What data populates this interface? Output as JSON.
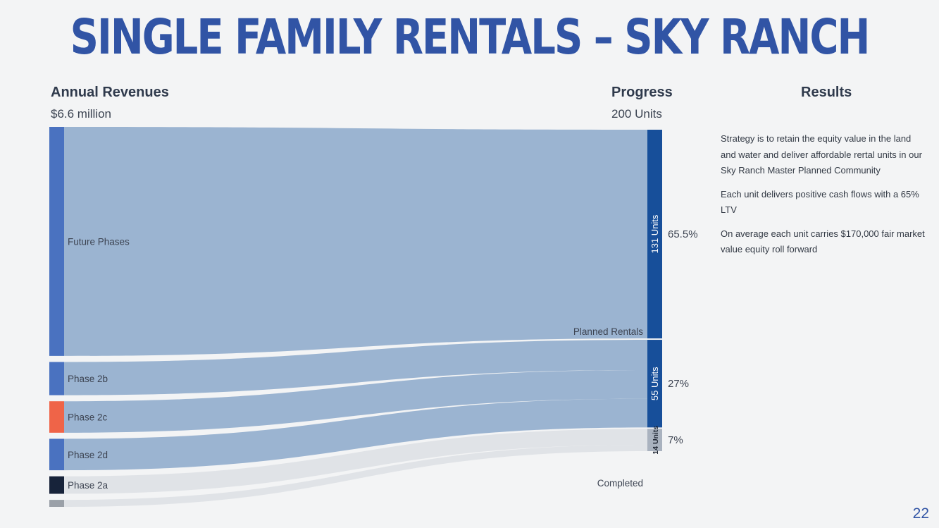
{
  "title": "SINGLE FAMILY RENTALS – SKY RANCH",
  "headers": {
    "revenues_label": "Annual Revenues",
    "revenues_value": "$6.6 million",
    "progress_label": "Progress",
    "progress_value": "200 Units",
    "results_label": "Results"
  },
  "results": [
    "Strategy is to retain the equity value in the land and water and deliver affordable rertal units in our Sky Ranch Master Planned Community",
    "Each unit delivers positive cash flows with a 65% LTV",
    "On average each unit carries $170,000 fair market value equity roll forward"
  ],
  "page_number": "22",
  "chart_data": {
    "type": "sankey",
    "total_units": 200,
    "sources": [
      {
        "name": "Future Phases",
        "units": 131,
        "color": "#4a72c0"
      },
      {
        "name": "Phase 2b",
        "units": 19,
        "color": "#4a72c0"
      },
      {
        "name": "Phase 2c",
        "units": 18,
        "color": "#ef6448"
      },
      {
        "name": "Phase 2d",
        "units": 18,
        "color": "#4a72c0"
      },
      {
        "name": "Phase 2a",
        "units": 10,
        "color": "#17233a"
      },
      {
        "name": "",
        "units": 4,
        "color": "#9aa0a8"
      }
    ],
    "targets": [
      {
        "name": "131 Units",
        "units": 131,
        "pct": "65.5%",
        "color": "#174f9a"
      },
      {
        "name": "55 Units",
        "units": 55,
        "pct": "27%",
        "color": "#174f9a"
      },
      {
        "name": "14 Units",
        "units": 14,
        "pct": "7%",
        "color": "#a9b2bf"
      }
    ],
    "flow_labels": [
      "Planned Rentals",
      "Completed"
    ],
    "links": [
      {
        "source": 0,
        "target": 0,
        "units": 131,
        "color": "#99b3d0"
      },
      {
        "source": 1,
        "target": 1,
        "units": 19,
        "color": "#99b3d0"
      },
      {
        "source": 2,
        "target": 1,
        "units": 18,
        "color": "#99b3d0"
      },
      {
        "source": 3,
        "target": 1,
        "units": 18,
        "color": "#99b3d0"
      },
      {
        "source": 4,
        "target": 2,
        "units": 10,
        "color": "#dfe2e7"
      },
      {
        "source": 5,
        "target": 2,
        "units": 4,
        "color": "#dfe2e7"
      }
    ]
  }
}
